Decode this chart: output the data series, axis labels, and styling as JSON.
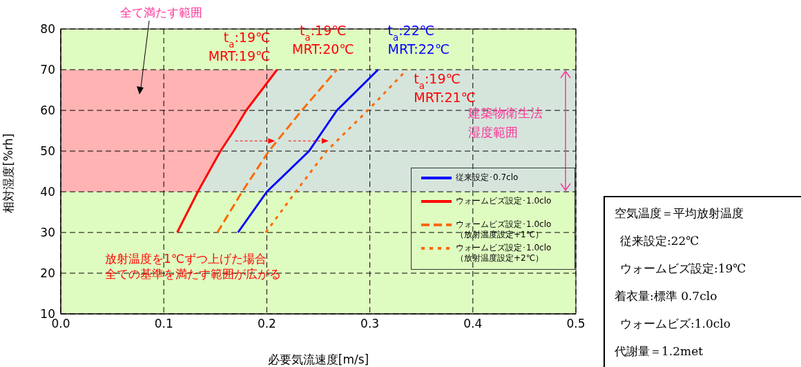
{
  "chart_data": {
    "type": "line",
    "xlabel": "必要気流速度[m/s]",
    "ylabel": "相対湿度[%rh]",
    "xlim": [
      0,
      0.5
    ],
    "xticks": [
      {
        "value": 0,
        "label": "0.0"
      },
      {
        "value": 0.1,
        "label": "0.1"
      },
      {
        "value": 0.2,
        "label": "0.2"
      },
      {
        "value": 0.3,
        "label": "0.3"
      },
      {
        "value": 0.4,
        "label": "0.4"
      },
      {
        "value": 0.5,
        "label": "0.5"
      }
    ],
    "ylim": [
      10,
      80
    ],
    "yticks": [
      10,
      20,
      30,
      40,
      50,
      60,
      70,
      80
    ],
    "grid": true,
    "legend": "right",
    "marker": "none",
    "bands": [
      {
        "axis": "y",
        "from": 40,
        "to": 70,
        "label": "建築物衛生法湿度範囲",
        "color": "#d5e5dc"
      }
    ],
    "series": [
      {
        "name": "従来設定･0.7clo",
        "color": "#0000ff",
        "line_style": "solid",
        "x": [
          0.172,
          0.2,
          0.241,
          0.268,
          0.308
        ],
        "values": [
          30,
          40,
          50,
          60,
          70
        ]
      },
      {
        "name": "ウォームビズ設定･1.0clo",
        "color": "#ff0000",
        "line_style": "solid",
        "x": [
          0.113,
          0.133,
          0.155,
          0.168,
          0.18,
          0.21
        ],
        "values": [
          30,
          40,
          50,
          55,
          60,
          70
        ]
      },
      {
        "name": "ウォームビズ設定･1.0clo\n（放射温度設定+1℃）",
        "color": "#ff6a00",
        "line_style": "dashed",
        "x": [
          0.152,
          0.176,
          0.202,
          0.234,
          0.268
        ],
        "values": [
          30,
          40,
          50,
          60,
          70
        ]
      },
      {
        "name": "ウォームビズ設定･1.0clo\n（放射温度設定+2℃）",
        "color": "#ff6a00",
        "line_style": "dotted",
        "x": [
          0.199,
          0.228,
          0.258,
          0.298,
          0.336
        ],
        "values": [
          30,
          40,
          50,
          60,
          70
        ]
      }
    ],
    "annotations": [
      "全て満たす範囲",
      {
        "text": "t$_{a}$:19℃\nMRT:19℃",
        "x": 0.21,
        "y": 70
      },
      {
        "text": "t$_{a}$:19℃\nMRT:20℃",
        "x": 0.268,
        "y": 70
      },
      {
        "text": "t$_{a}$:22℃\nMRT:22℃",
        "x": 0.308,
        "y": 70
      },
      {
        "text": "t$_{a}$:19℃\nMRT:21℃",
        "x": 0.336,
        "y": 70
      },
      "放射温度を1℃ずつ上げた場合",
      "全ての基準を満たす範囲が広がる",
      "空気温度＝平均放射温度",
      "従来設定:22℃",
      "ウォームビズ設定:19℃",
      "着衣量:標準 0.7clo",
      "ウォームビズ:1.0clo",
      "代謝量＝1.2met"
    ]
  }
}
